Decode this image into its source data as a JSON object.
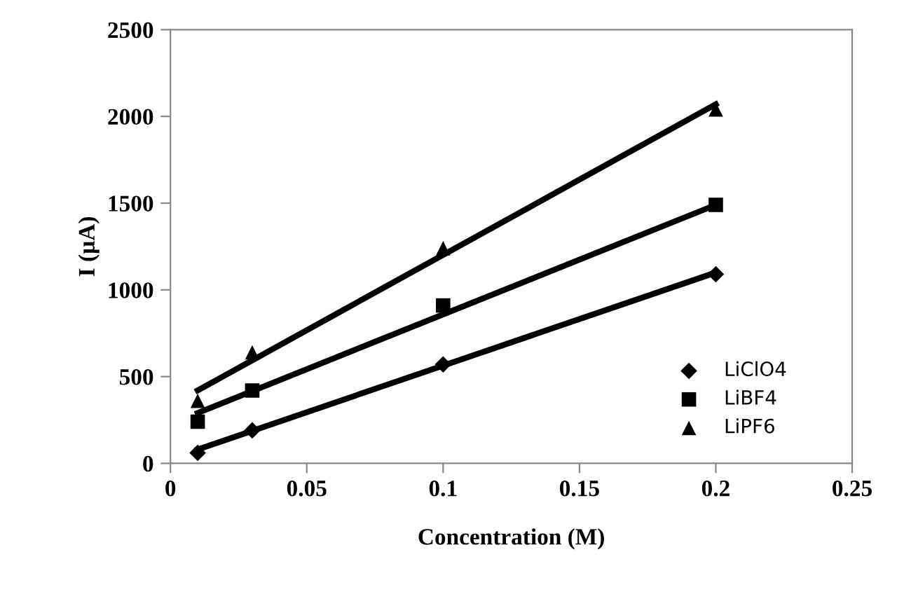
{
  "chart_data": {
    "type": "scatter",
    "xlabel": "Concentration (M)",
    "ylabel": "I (µA)",
    "xlim": [
      0,
      0.25
    ],
    "ylim": [
      0,
      2500
    ],
    "xticks": [
      {
        "value": 0,
        "label": "0"
      },
      {
        "value": 0.05,
        "label": "0.05"
      },
      {
        "value": 0.1,
        "label": "0.1"
      },
      {
        "value": 0.15,
        "label": "0.15"
      },
      {
        "value": 0.2,
        "label": "0.2"
      },
      {
        "value": 0.25,
        "label": "0.25"
      }
    ],
    "yticks": [
      0,
      500,
      1000,
      1500,
      2000,
      2500
    ],
    "grid": false,
    "legend": "bottom right",
    "series": [
      {
        "name": "LiClO4",
        "color": "#000000",
        "marker": "diamond",
        "x": [
          0.01,
          0.03,
          0.1,
          0.2
        ],
        "values": [
          60,
          190,
          570,
          1090
        ]
      },
      {
        "name": "LiBF4",
        "color": "#000000",
        "marker": "square",
        "x": [
          0.01,
          0.03,
          0.1,
          0.2
        ],
        "values": [
          240,
          420,
          910,
          1490
        ]
      },
      {
        "name": "LiPF6",
        "color": "#000000",
        "marker": "triangle",
        "x": [
          0.01,
          0.03,
          0.1,
          0.2
        ],
        "values": [
          360,
          640,
          1240,
          2040
        ]
      },
      {
        "type": "line",
        "color": "#000000",
        "marker": "none",
        "x": [
          0.01,
          0.2
        ],
        "values": [
          80,
          1100
        ]
      },
      {
        "type": "line",
        "color": "#000000",
        "marker": "none",
        "x": [
          0.01,
          0.2
        ],
        "values": [
          290,
          1490
        ]
      },
      {
        "type": "line",
        "color": "#000000",
        "marker": "none",
        "x": [
          0.01,
          0.2
        ],
        "values": [
          420,
          2070
        ]
      }
    ]
  }
}
